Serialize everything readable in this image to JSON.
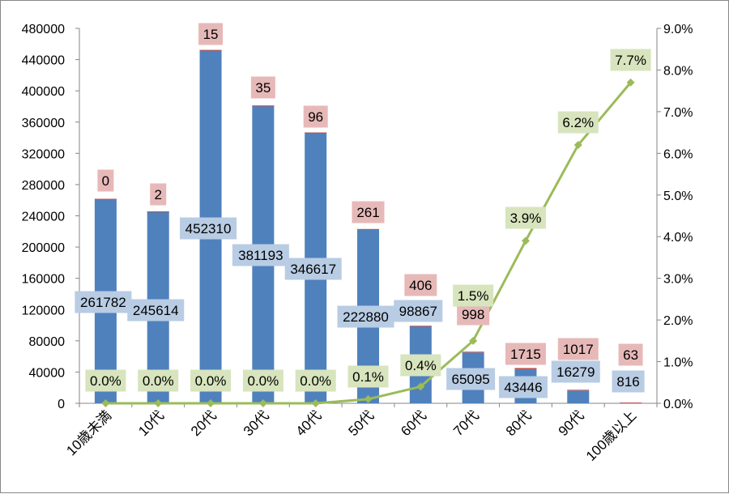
{
  "chart_data": {
    "type": "bar",
    "categories": [
      "10歳未満",
      "10代",
      "20代",
      "30代",
      "40代",
      "50代",
      "60代",
      "70代",
      "80代",
      "90代",
      "100歳以上"
    ],
    "series": [
      {
        "values": [
          261782,
          245614,
          452310,
          381193,
          346617,
          222880,
          98867,
          65095,
          43446,
          16279,
          816
        ],
        "value_labels": [
          "261782",
          "245614",
          "452310",
          "381193",
          "346617",
          "222880",
          "98867",
          "65095",
          "43446",
          "16279",
          "816"
        ],
        "color": "#4F81BD",
        "axis": "left",
        "stacked": true
      },
      {
        "values": [
          0,
          2,
          15,
          35,
          96,
          261,
          406,
          998,
          1715,
          1017,
          63
        ],
        "value_labels": [
          "0",
          "2",
          "15",
          "35",
          "96",
          "261",
          "406",
          "998",
          "1715",
          "1017",
          "63"
        ],
        "color": "#C0504D",
        "axis": "left",
        "stacked": true
      },
      {
        "values": [
          0.0,
          0.0,
          0.0,
          0.0,
          0.0,
          0.1,
          0.4,
          1.5,
          3.9,
          6.2,
          7.7
        ],
        "value_labels": [
          "0.0%",
          "0.0%",
          "0.0%",
          "0.0%",
          "0.0%",
          "0.1%",
          "0.4%",
          "1.5%",
          "3.9%",
          "6.2%",
          "7.7%"
        ],
        "color": "#9BBB59",
        "axis": "right",
        "type": "line"
      }
    ],
    "y_left": {
      "min": 0,
      "max": 480000,
      "step": 40000,
      "tick_labels": [
        "0",
        "40000",
        "80000",
        "120000",
        "160000",
        "200000",
        "240000",
        "280000",
        "320000",
        "360000",
        "400000",
        "440000",
        "480000"
      ]
    },
    "y_right": {
      "min": 0,
      "max": 9,
      "step": 1,
      "tick_labels": [
        "0.0%",
        "1.0%",
        "2.0%",
        "3.0%",
        "4.0%",
        "5.0%",
        "6.0%",
        "7.0%",
        "8.0%",
        "9.0%"
      ]
    },
    "grid": false,
    "legend": "none",
    "label_colors": {
      "blue_box": "#B8CCE4",
      "red_box": "#E6B9B8",
      "green_box": "#D7E4BD"
    }
  }
}
